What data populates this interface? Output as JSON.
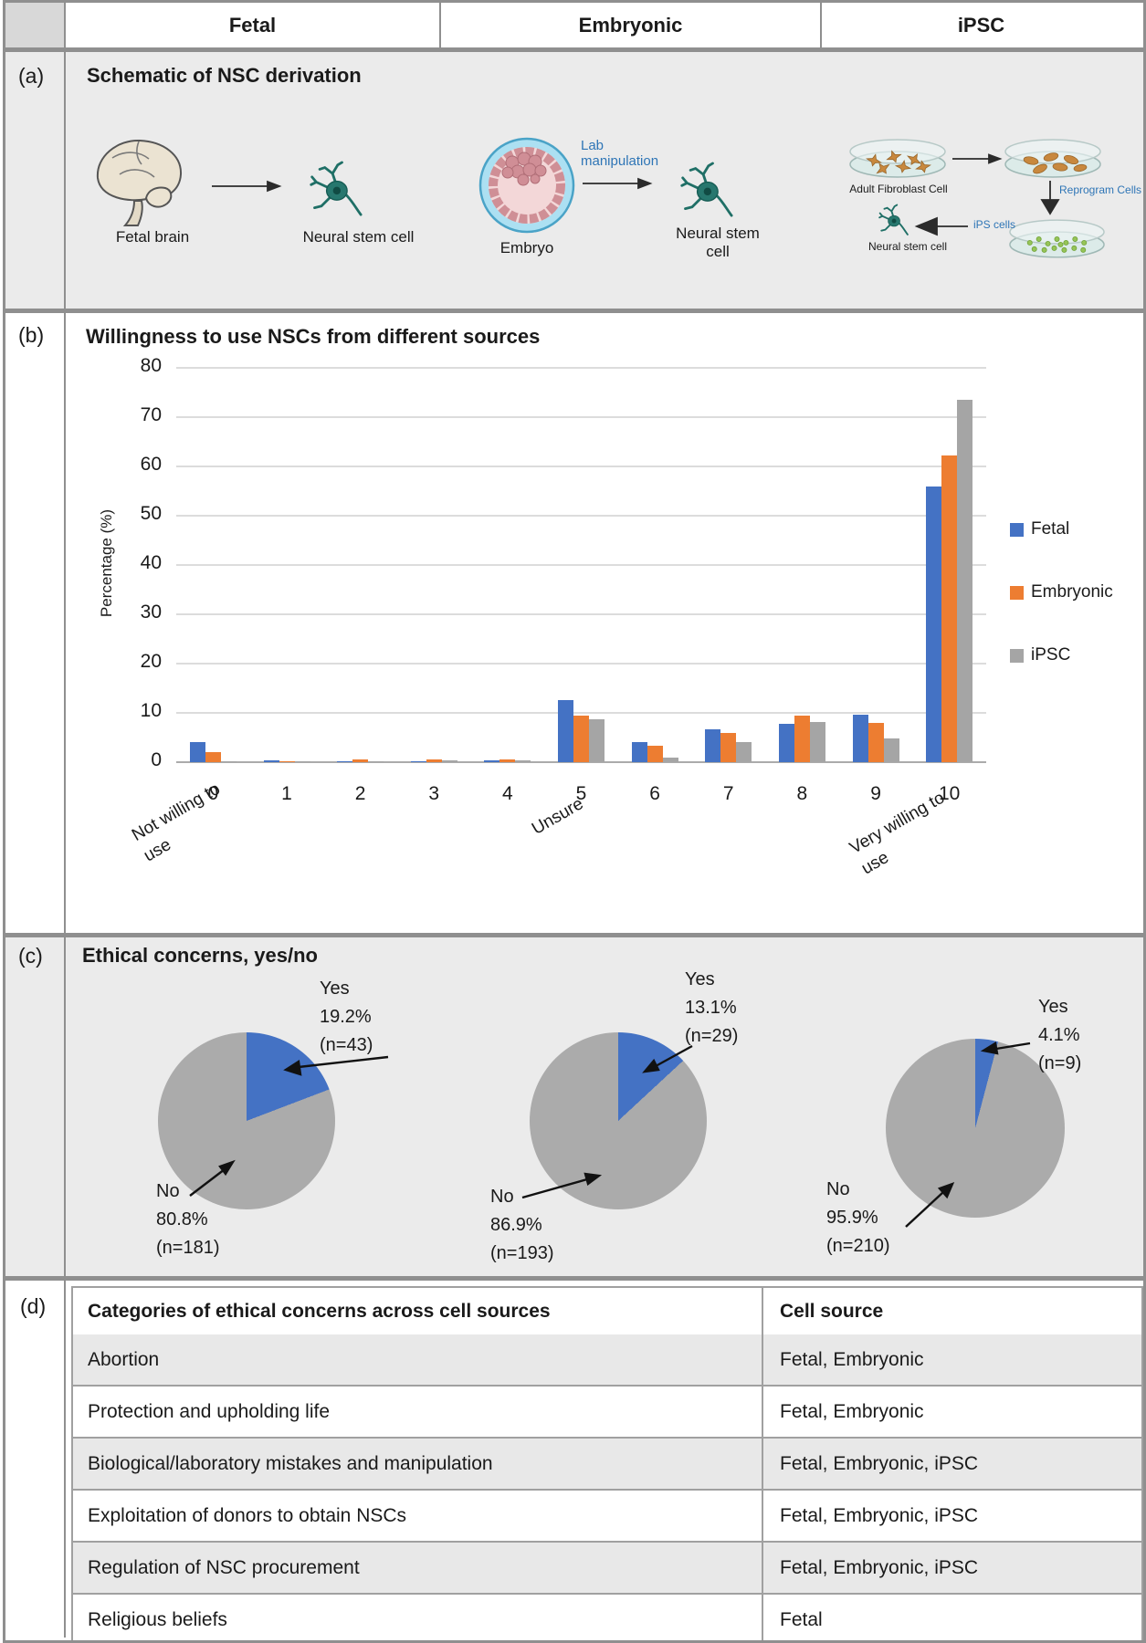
{
  "header": {
    "columns": [
      "Fetal",
      "Embryonic",
      "iPSC"
    ]
  },
  "panels": {
    "a": {
      "label": "(a)",
      "title": "Schematic of NSC derivation",
      "fetal": {
        "source": "Fetal brain",
        "result": "Neural stem cell"
      },
      "embryonic": {
        "source": "Embryo",
        "process": "Lab manipulation",
        "result": "Neural stem cell"
      },
      "ipsc": {
        "source": "Adult Fibroblast Cell",
        "process": "Reprogram Cells",
        "intermediate": "iPS cells",
        "result": "Neural stem cell"
      },
      "icons": [
        "fetal-brain-icon",
        "neural-stem-cell-icon",
        "embryo-blastocyst-icon",
        "petri-dish-fibroblast-icon",
        "petri-dish-reprogram-icon",
        "petri-dish-ips-icon",
        "arrow-icon"
      ]
    },
    "b": {
      "label": "(b)"
    },
    "c": {
      "label": "(c)",
      "title": "Ethical concerns, yes/no"
    },
    "d": {
      "label": "(d)"
    }
  },
  "colors": {
    "fetal": "#4472C4",
    "embryonic": "#ED7D31",
    "ipsc": "#A5A5A5",
    "pie_no_gray": "#ABABAB",
    "schematic_blue": "#2E75B6"
  },
  "chart_data": [
    {
      "type": "bar",
      "title": "Willingness to use NSCs from different sources",
      "xlabel": "",
      "ylabel": "Percentage (%)",
      "ylim": [
        0,
        80
      ],
      "yticks": [
        0,
        10,
        20,
        30,
        40,
        50,
        60,
        70,
        80
      ],
      "grid": true,
      "legend_position": "right",
      "categories": [
        "0",
        "1",
        "2",
        "3",
        "4",
        "5",
        "6",
        "7",
        "8",
        "9",
        "10"
      ],
      "annotations": [
        {
          "category": "0",
          "text": "Not willing to use"
        },
        {
          "category": "5",
          "text": "Unsure"
        },
        {
          "category": "10",
          "text": "Very willing to use"
        }
      ],
      "series": [
        {
          "name": "Fetal",
          "color": "#4472C4",
          "values": [
            4.0,
            0.3,
            0.2,
            0.2,
            0.3,
            12.6,
            4.0,
            6.7,
            7.8,
            9.6,
            55.9
          ]
        },
        {
          "name": "Embryonic",
          "color": "#ED7D31",
          "values": [
            2.0,
            0.1,
            0.5,
            0.5,
            0.6,
            9.5,
            3.4,
            5.9,
            9.4,
            8.0,
            62.2
          ]
        },
        {
          "name": "iPSC",
          "color": "#A5A5A5",
          "values": [
            0.2,
            0.1,
            0.2,
            0.3,
            0.4,
            8.8,
            1.0,
            4.1,
            8.1,
            4.8,
            73.5
          ]
        }
      ]
    },
    {
      "type": "pie",
      "source": "Fetal",
      "start_angle_deg": 0,
      "direction": "clockwise",
      "slices": [
        {
          "label": "Yes",
          "pct": 19.2,
          "pct_label": "19.2%",
          "n": 43,
          "n_label": "(n=43)",
          "color": "#4472C4"
        },
        {
          "label": "No",
          "pct": 80.8,
          "pct_label": "80.8%",
          "n": 181,
          "n_label": "(n=181)",
          "color": "#ABABAB"
        }
      ]
    },
    {
      "type": "pie",
      "source": "Embryonic",
      "start_angle_deg": 0,
      "direction": "clockwise",
      "slices": [
        {
          "label": "Yes",
          "pct": 13.1,
          "pct_label": "13.1%",
          "n": 29,
          "n_label": "(n=29)",
          "color": "#4472C4"
        },
        {
          "label": "No",
          "pct": 86.9,
          "pct_label": "86.9%",
          "n": 193,
          "n_label": "(n=193)",
          "color": "#ABABAB"
        }
      ]
    },
    {
      "type": "pie",
      "source": "iPSC",
      "start_angle_deg": 0,
      "direction": "clockwise",
      "slices": [
        {
          "label": "Yes",
          "pct": 4.1,
          "pct_label": "4.1%",
          "n": 9,
          "n_label": "(n=9)",
          "color": "#4472C4"
        },
        {
          "label": "No",
          "pct": 95.9,
          "pct_label": "95.9%",
          "n": 210,
          "n_label": "(n=210)",
          "color": "#ABABAB"
        }
      ]
    },
    {
      "type": "table",
      "columns": [
        "Categories of ethical concerns across cell sources",
        "Cell source"
      ],
      "rows": [
        [
          "Abortion",
          "Fetal, Embryonic"
        ],
        [
          "Protection and upholding life",
          "Fetal, Embryonic"
        ],
        [
          "Biological/laboratory mistakes and manipulation",
          "Fetal, Embryonic, iPSC"
        ],
        [
          "Exploitation of donors to obtain NSCs",
          "Fetal, Embryonic, iPSC"
        ],
        [
          "Regulation of NSC procurement",
          "Fetal, Embryonic, iPSC"
        ],
        [
          "Religious beliefs",
          "Fetal"
        ]
      ]
    }
  ]
}
